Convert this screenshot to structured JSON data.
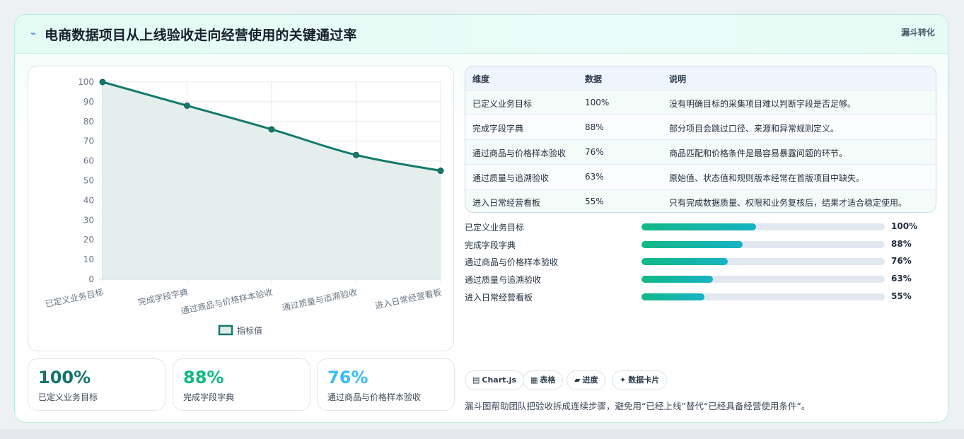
{
  "header": {
    "title_icon": "⌁",
    "title": "电商数据项目从上线验收走向经营使用的关键通过率",
    "tag": "漏斗转化"
  },
  "chart_data": {
    "type": "line",
    "categories": [
      "已定义业务目标",
      "完成字段字典",
      "通过商品与价格样本验收",
      "通过质量与追溯验收",
      "进入日常经营看板"
    ],
    "series": [
      {
        "name": "指标值",
        "values": [
          100,
          88,
          76,
          63,
          55
        ],
        "color": "#137a6c",
        "fill": "#dfecea"
      }
    ],
    "ylim": [
      0,
      100
    ],
    "yticks": [
      0,
      10,
      20,
      30,
      40,
      50,
      60,
      70,
      80,
      90,
      100
    ],
    "grid": true,
    "legend": "bottom",
    "area": true
  },
  "kpis": [
    {
      "value": "100%",
      "label": "已定义业务目标",
      "color": "#0f766e"
    },
    {
      "value": "88%",
      "label": "完成字段字典",
      "color": "#10b981"
    },
    {
      "value": "76%",
      "label": "通过商品与价格样本验收",
      "color": "#38bdf8"
    }
  ],
  "table": {
    "headers": [
      "维度",
      "数据",
      "说明"
    ],
    "rows": [
      [
        "已定义业务目标",
        "100%",
        "没有明确目标的采集项目难以判断字段是否足够。"
      ],
      [
        "完成字段字典",
        "88%",
        "部分项目会跳过口径、来源和异常规则定义。"
      ],
      [
        "通过商品与价格样本验收",
        "76%",
        "商品匹配和价格条件是最容易暴露问题的环节。"
      ],
      [
        "通过质量与追溯验收",
        "63%",
        "原始值、状态值和规则版本经常在首版项目中缺失。"
      ],
      [
        "进入日常经营看板",
        "55%",
        "只有完成数据质量、权限和业务复核后，结果才适合稳定使用。"
      ]
    ]
  },
  "progress": [
    {
      "label": "已定义业务目标",
      "value": "100%",
      "fraction": 0.47
    },
    {
      "label": "完成字段字典",
      "value": "88%",
      "fraction": 0.415
    },
    {
      "label": "通过商品与价格样本验收",
      "value": "76%",
      "fraction": 0.355
    },
    {
      "label": "通过质量与追溯验收",
      "value": "63%",
      "fraction": 0.295
    },
    {
      "label": "进入日常经营看板",
      "value": "55%",
      "fraction": 0.258
    }
  ],
  "pills": [
    {
      "icon": "▤",
      "label": "Chart.js"
    },
    {
      "icon": "▦",
      "label": "表格"
    },
    {
      "icon": "▰",
      "label": "进度"
    },
    {
      "icon": "✦",
      "label": "数据卡片"
    }
  ],
  "note": "漏斗图帮助团队把验收拆成连续步骤，避免用“已经上线”替代“已经具备经营使用条件”。"
}
